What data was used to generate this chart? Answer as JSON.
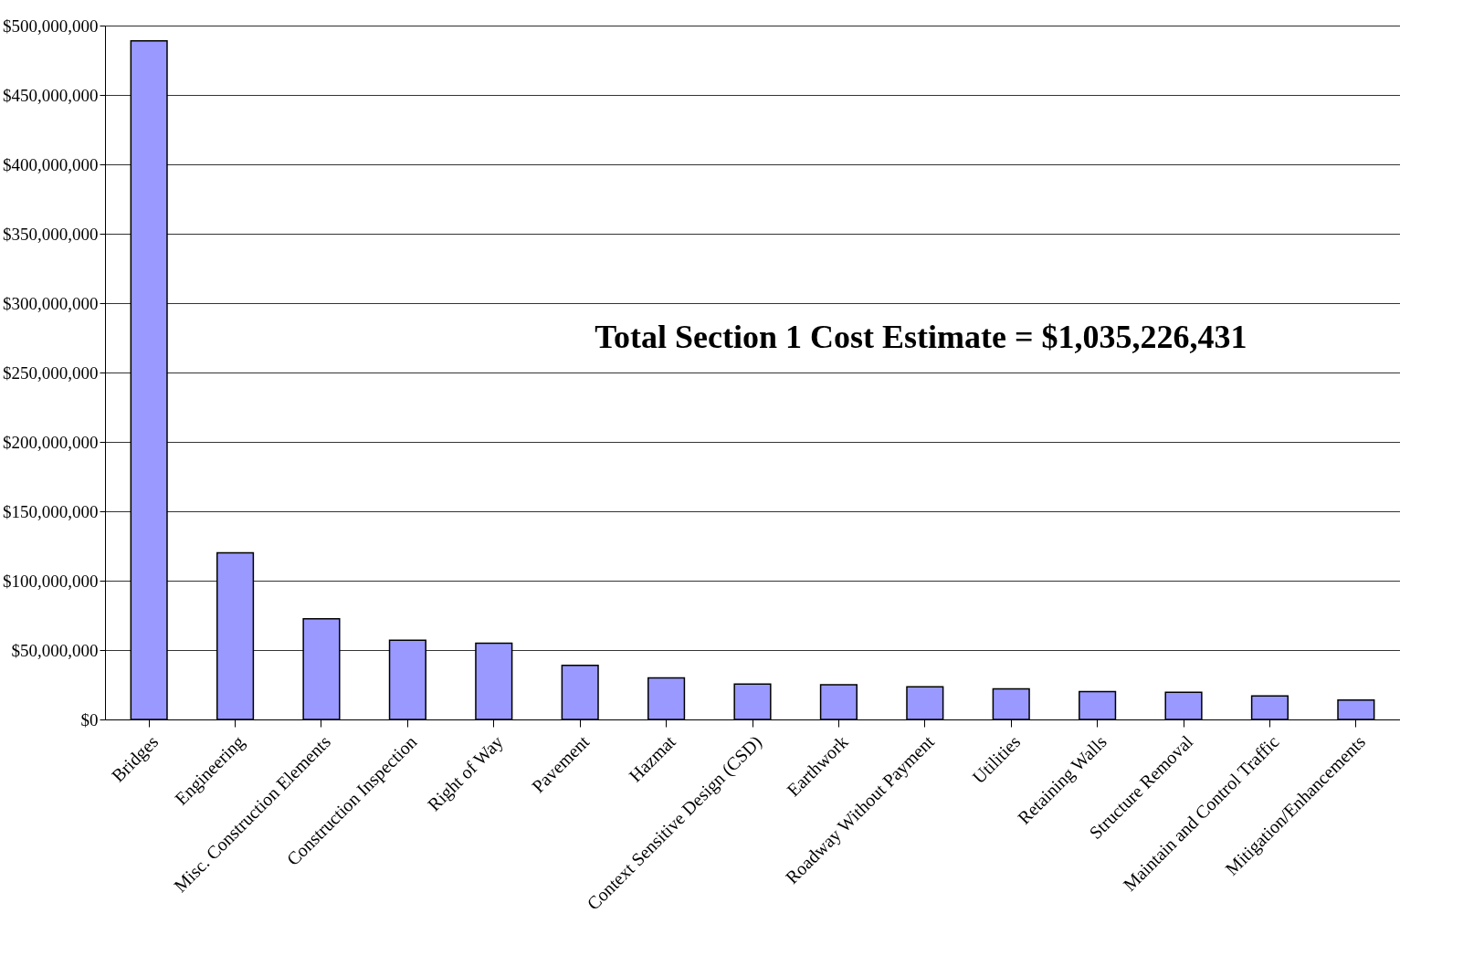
{
  "chart_data": {
    "type": "bar",
    "categories": [
      "Bridges",
      "Engineering",
      "Misc. Construction Elements",
      "Construction Inspection",
      "Right of Way",
      "Pavement",
      "Hazmat",
      "Context Sensitive Design (CSD)",
      "Earthwork",
      "Roadway Without Payment",
      "Utilities",
      "Retaining Walls",
      "Structure Removal",
      "Maintain and Control Traffic",
      "Mitigation/Enhancements"
    ],
    "values": [
      489000000,
      120000000,
      72600000,
      57000000,
      55000000,
      39000000,
      30000000,
      25500000,
      25000000,
      23500000,
      22000000,
      20000000,
      19500000,
      17000000,
      14000000
    ],
    "color": "#9999ff",
    "ylim": [
      0,
      500000000
    ],
    "yticks": [
      {
        "value": 0,
        "label": "$0"
      },
      {
        "value": 50000000,
        "label": "$50,000,000"
      },
      {
        "value": 100000000,
        "label": "$100,000,000"
      },
      {
        "value": 150000000,
        "label": "$150,000,000"
      },
      {
        "value": 200000000,
        "label": "$200,000,000"
      },
      {
        "value": 250000000,
        "label": "$250,000,000"
      },
      {
        "value": 300000000,
        "label": "$300,000,000"
      },
      {
        "value": 350000000,
        "label": "$350,000,000"
      },
      {
        "value": 400000000,
        "label": "$400,000,000"
      },
      {
        "value": 450000000,
        "label": "$450,000,000"
      },
      {
        "value": 500000000,
        "label": "$500,000,000"
      }
    ],
    "grid": "y",
    "annotations": [
      "Total Section 1 Cost Estimate = $1,035,226,431"
    ]
  }
}
